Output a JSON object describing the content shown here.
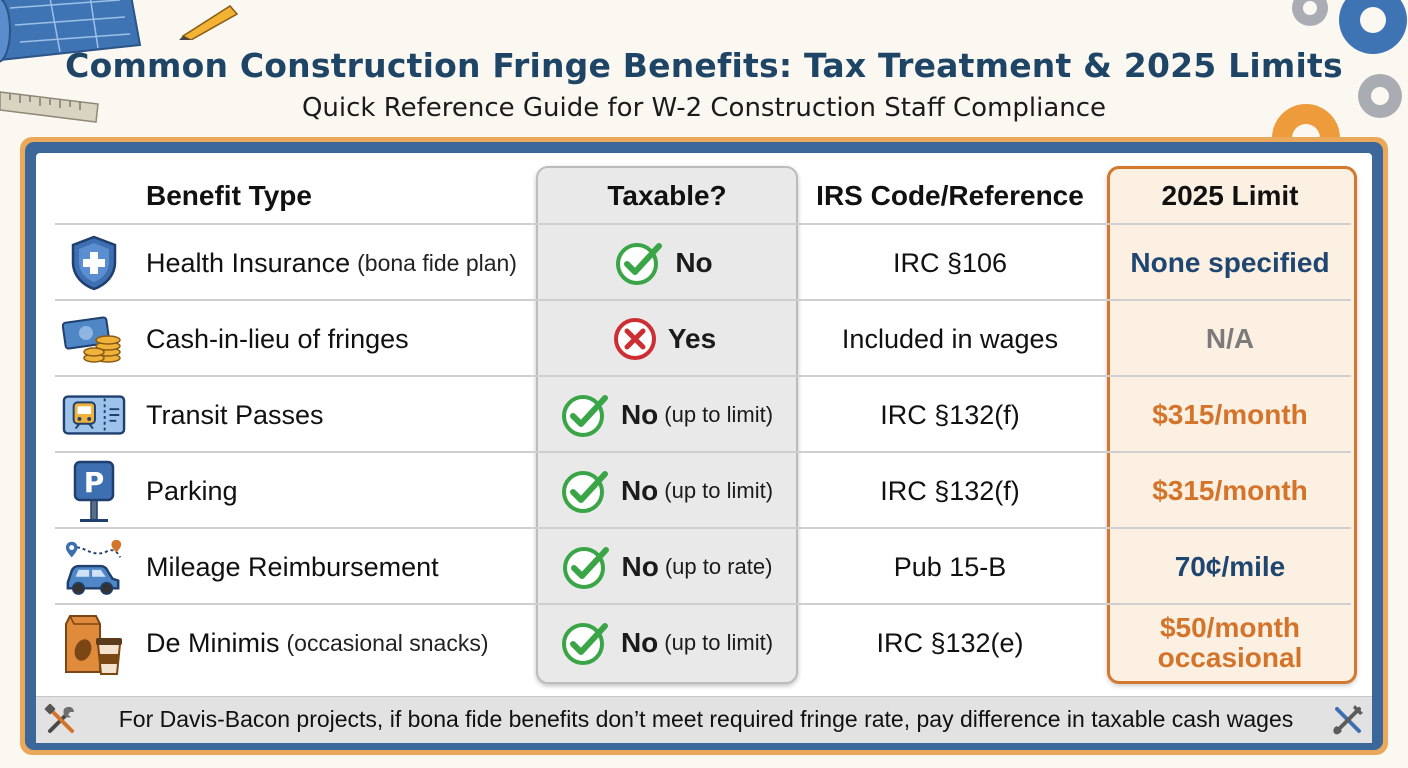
{
  "title": "Common Construction Fringe Benefits: Tax Treatment & 2025 Limits",
  "subtitle": "Quick Reference Guide for W-2 Construction Staff Compliance",
  "headers": {
    "benefit": "Benefit Type",
    "taxable": "Taxable?",
    "irs": "IRS Code/Reference",
    "limit": "2025 Limit"
  },
  "colors": {
    "title": "#1e4466",
    "frame_blue": "#3b679a",
    "frame_orange": "#e9a85a",
    "check_green": "#3aa547",
    "x_red": "#cc2e32",
    "limit_navy": "#1f4670",
    "limit_orange": "#d4742a",
    "limit_gray": "#7b7b7b"
  },
  "rows": [
    {
      "icon": "shield-cross-icon",
      "benefit": "Health Insurance",
      "benefit_note": "(bona fide plan)",
      "taxable_icon": "check-icon",
      "taxable": "No",
      "taxable_note": "",
      "irs": "IRC §106",
      "limit": "None specified",
      "limit_color": "#1f4670"
    },
    {
      "icon": "cash-coins-icon",
      "benefit": "Cash-in-lieu of fringes",
      "benefit_note": "",
      "taxable_icon": "x-icon",
      "taxable": "Yes",
      "taxable_note": "",
      "irs": "Included in wages",
      "limit": "N/A",
      "limit_color": "#7b7b7b"
    },
    {
      "icon": "transit-ticket-icon",
      "benefit": "Transit Passes",
      "benefit_note": "",
      "taxable_icon": "check-icon",
      "taxable": "No",
      "taxable_note": "(up to limit)",
      "irs": "IRC §132(f)",
      "limit": "$315/month",
      "limit_color": "#d4742a"
    },
    {
      "icon": "parking-sign-icon",
      "benefit": "Parking",
      "benefit_note": "",
      "taxable_icon": "check-icon",
      "taxable": "No",
      "taxable_note": "(up to limit)",
      "irs": "IRC §132(f)",
      "limit": "$315/month",
      "limit_color": "#d4742a"
    },
    {
      "icon": "car-route-icon",
      "benefit": "Mileage Reimbursement",
      "benefit_note": "",
      "taxable_icon": "check-icon",
      "taxable": "No",
      "taxable_note": "(up to rate)",
      "irs": "Pub 15-B",
      "limit": "70¢/mile",
      "limit_color": "#1f4670"
    },
    {
      "icon": "snack-bag-cup-icon",
      "benefit": "De Minimis",
      "benefit_note": "(occasional snacks)",
      "taxable_icon": "check-icon",
      "taxable": "No",
      "taxable_note": "(up to limit)",
      "irs": "IRC §132(e)",
      "limit": "$50/month\noccasional",
      "limit_color": "#d4742a"
    }
  ],
  "footer": "For Davis-Bacon projects, if bona fide benefits don’t meet required fringe rate, pay difference in taxable cash wages"
}
